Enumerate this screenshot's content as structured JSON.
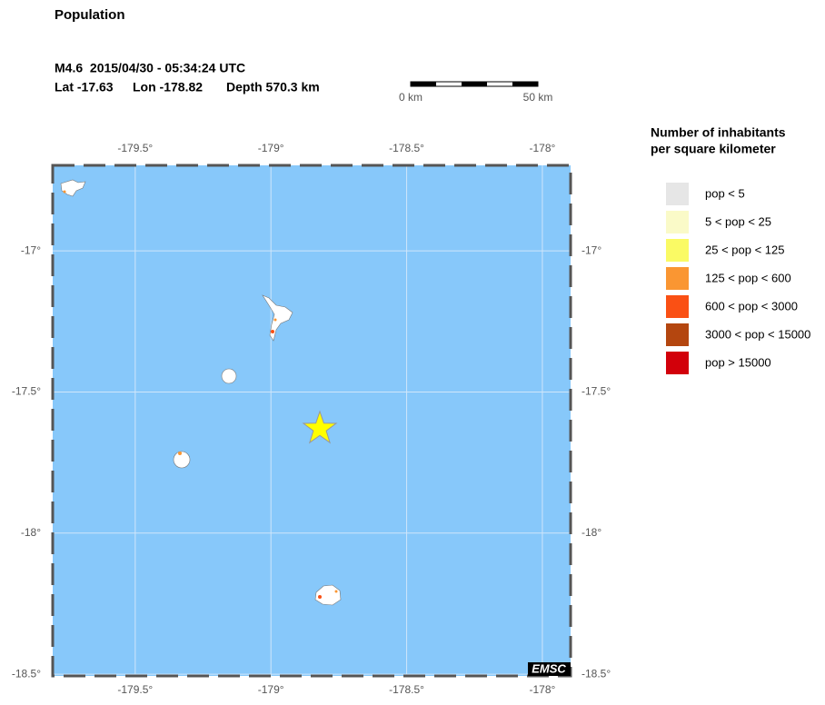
{
  "header": {
    "title": "Population",
    "event_line": "M4.6  2015/04/30 - 05:34:24 UTC",
    "lat": {
      "value": -17.63,
      "label": "Lat -17.63"
    },
    "lon": {
      "value": -178.82,
      "label": "Lon -178.82"
    },
    "depth": {
      "value": 570.3,
      "label": "Depth 570.3 km"
    }
  },
  "scale_bar": {
    "labels": [
      "0 km",
      "50 km"
    ]
  },
  "map": {
    "lonlim": [
      -179.804,
      -177.896
    ],
    "latlim": [
      -18.506,
      -16.697
    ],
    "lonticks": [
      {
        "value": -179.5,
        "label": "-179.5°"
      },
      {
        "value": -179,
        "label": "-179°"
      },
      {
        "value": -178.5,
        "label": "-178.5°"
      },
      {
        "value": -178,
        "label": "-178°"
      }
    ],
    "latticks": [
      {
        "value": -17,
        "label": "-17°"
      },
      {
        "value": -17.5,
        "label": "-17.5°"
      },
      {
        "value": -18,
        "label": "-18°"
      },
      {
        "value": -18.5,
        "label": "-18.5°"
      }
    ],
    "grid": true,
    "logo": "EMSC"
  },
  "legend": {
    "title": [
      "Number of inhabitants",
      "per square kilometer"
    ],
    "items": [
      {
        "label": "pop < 5",
        "color": "#e6e6e6"
      },
      {
        "label": "5 < pop < 25",
        "color": "#fafac8"
      },
      {
        "label": "25 < pop < 125",
        "color": "#fafa64"
      },
      {
        "label": "125 < pop < 600",
        "color": "#fa9632"
      },
      {
        "label": "600 < pop < 3000",
        "color": "#fa5014"
      },
      {
        "label": "3000 < pop < 15000",
        "color": "#b4460f"
      },
      {
        "label": "pop > 15000",
        "color": "#d2000a"
      }
    ]
  }
}
